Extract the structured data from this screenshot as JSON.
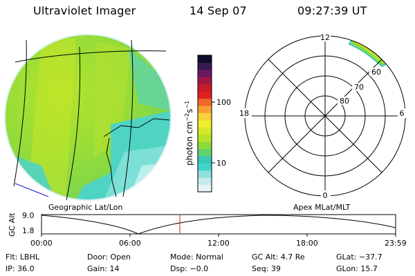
{
  "header": {
    "title": "Ultraviolet Imager",
    "date": "14 Sep 07",
    "time": "09:27:39 UT"
  },
  "colorbar": {
    "unit_label": "photon cm",
    "unit_sup1": "−2",
    "unit_mid": "s",
    "unit_sup2": "−1",
    "tick_100": "100",
    "tick_10": "10",
    "colors": [
      "#e8f4f6",
      "#c4ecec",
      "#8fe0dc",
      "#40d4cc",
      "#3cc8b8",
      "#60d26e",
      "#8fdb3c",
      "#b5e42a",
      "#d6e82a",
      "#f0f02a",
      "#f6d23a",
      "#f5a031",
      "#ee6a28",
      "#e02020",
      "#c81a2a",
      "#a01845",
      "#6a1860",
      "#3a1a55",
      "#120c2e"
    ]
  },
  "labels": {
    "geo": "Geographic Lat/Lon",
    "apex": "Apex MLat/MLT"
  },
  "polar": {
    "mlt_12": "12",
    "mlt_18": "18",
    "mlt_6": "6",
    "mlt_0": "0",
    "lat_60": "60",
    "lat_70": "70",
    "lat_80": "80"
  },
  "orbit": {
    "ylabel": "GC Alt",
    "y_top": "9.0",
    "y_bot": "1.8",
    "x_ticks": [
      "00:00",
      "06:00",
      "12:00",
      "18:00",
      "23:59"
    ],
    "cursor_color": "#d02020"
  },
  "status": {
    "filter": "Flt: LBHL",
    "ip": "IP: 36.0",
    "door": "Door: Open",
    "gain": "Gain: 14",
    "mode": "Mode: Normal",
    "dsp": "Dsp:   −0.0",
    "gcalt": "GC Alt: 4.7 Re",
    "seq": "Seq: 39",
    "glat": "GLat: −37.7",
    "glon": "GLon:  15.7"
  }
}
